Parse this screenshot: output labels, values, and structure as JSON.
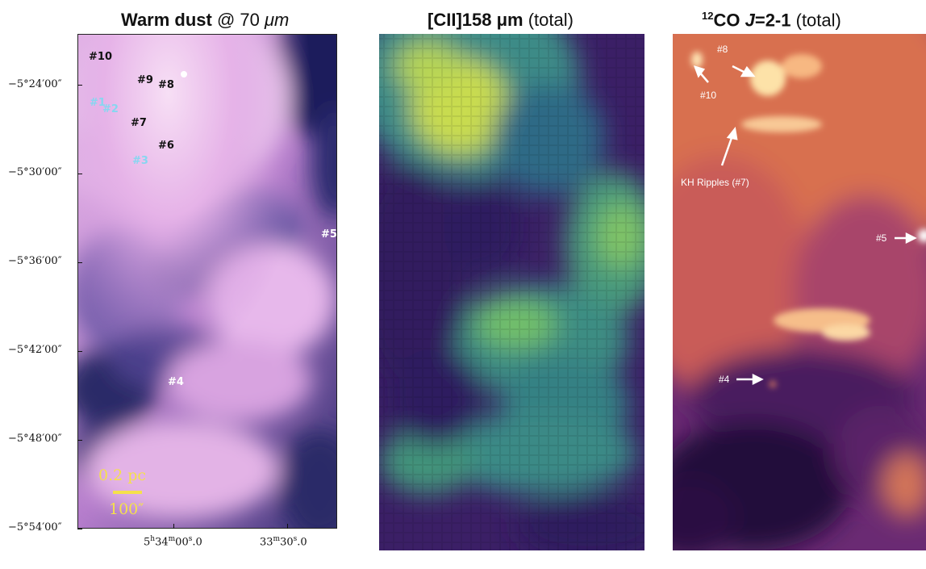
{
  "panels": [
    {
      "title_bold": "Warm dust",
      "title_rest": " @ 70 ",
      "title_unit": "μm"
    },
    {
      "title_bold": "[CII]158 μm",
      "title_rest": "  (total)"
    },
    {
      "title_sup": "12",
      "title_bold": "CO ",
      "title_italic": "J",
      "title_bold2": "=2-1",
      "title_rest": " (total)"
    }
  ],
  "yticks": [
    "−5°24′00″",
    "−5°30′00″",
    "−5°36′00″",
    "−5°42′00″",
    "−5°48′00″",
    "−5°54′00″"
  ],
  "xticks": [
    {
      "main": "5",
      "sup1": "h",
      "mid": "34",
      "sup2": "m",
      "tail": "00",
      "sup3": "s",
      "end": ".0"
    },
    {
      "main": "33",
      "sup2": "m",
      "tail": "30",
      "sup3": "s",
      "end": ".0"
    }
  ],
  "dust_labels": {
    "l10": "#10",
    "l9": "#9",
    "l8": "#8",
    "l1": "#1",
    "l2": "#2",
    "l7": "#7",
    "l6": "#6",
    "l3": "#3",
    "l5": "#5",
    "l4": "#4"
  },
  "scale": {
    "pc": "0.2  pc",
    "arcsec": "100″"
  },
  "co_labels": {
    "l8": "#8",
    "l10": "#10",
    "kh": "KH Ripples (#7)",
    "l5": "#5",
    "l4": "#4"
  },
  "colors": {
    "dust_bright": "#f0c8ec",
    "dust_mid": "#d49be0",
    "dust_dark": "#2b2a66",
    "cii_bright": "#e8e04a",
    "cii_mid": "#3f8a8a",
    "cii_dark": "#2f1a5c",
    "co_bright": "#fbe3b0",
    "co_mid": "#e07a52",
    "co_dark": "#1a0b32",
    "scale": "#f5e14a",
    "cyan_label": "#87d6f0"
  }
}
